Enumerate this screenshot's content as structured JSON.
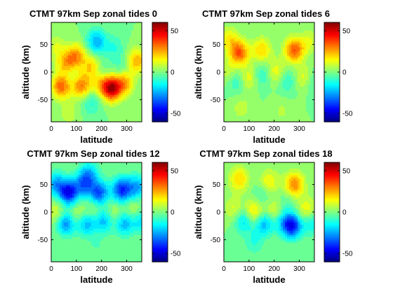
{
  "chart_data": [
    {
      "type": "heatmap",
      "title": "CTMT 97km Sep zonal tides 0",
      "xlabel": "latitude",
      "ylabel": "altitude (km)",
      "xlim": [
        0,
        360
      ],
      "ylim": [
        -90,
        90
      ],
      "xticks": [
        0,
        100,
        200,
        300
      ],
      "yticks": [
        50,
        0,
        -50
      ],
      "colorbar": {
        "min": -60,
        "max": 60,
        "ticks": [
          50,
          0,
          -50
        ]
      },
      "grid": false,
      "features": [
        {
          "x": 100,
          "y": 30,
          "value": 25
        },
        {
          "x": 180,
          "y": 55,
          "value": -25
        },
        {
          "x": 60,
          "y": 15,
          "value": 25
        },
        {
          "x": 160,
          "y": 10,
          "value": 20
        },
        {
          "x": 340,
          "y": 20,
          "value": 25
        },
        {
          "x": 240,
          "y": -30,
          "value": 50
        },
        {
          "x": 40,
          "y": -25,
          "value": 35
        },
        {
          "x": 120,
          "y": -25,
          "value": 30
        },
        {
          "x": 290,
          "y": -20,
          "value": 25
        },
        {
          "x": 200,
          "y": -20,
          "value": 20
        },
        {
          "x": 20,
          "y": 45,
          "value": 10
        },
        {
          "x": 250,
          "y": 45,
          "value": -10
        },
        {
          "x": 160,
          "y": -55,
          "value": -12
        },
        {
          "x": 70,
          "y": -5,
          "value": -8
        },
        {
          "x": 280,
          "y": 10,
          "value": -8
        },
        {
          "x": 200,
          "y": 0,
          "value": -10
        },
        {
          "x": 70,
          "y": -75,
          "value": 8
        }
      ]
    },
    {
      "type": "heatmap",
      "title": "CTMT 97km Sep zonal tides 6",
      "xlabel": "latitude",
      "ylabel": "altitude (km)",
      "xlim": [
        0,
        360
      ],
      "ylim": [
        -90,
        90
      ],
      "xticks": [
        0,
        100,
        200,
        300
      ],
      "yticks": [
        50,
        0,
        -50
      ],
      "colorbar": {
        "min": -60,
        "max": 60,
        "ticks": [
          50,
          0,
          -50
        ]
      },
      "grid": false,
      "features": [
        {
          "x": 60,
          "y": 35,
          "value": 35
        },
        {
          "x": 280,
          "y": 40,
          "value": 35
        },
        {
          "x": 150,
          "y": 40,
          "value": 20
        },
        {
          "x": 340,
          "y": 55,
          "value": 10
        },
        {
          "x": 20,
          "y": 60,
          "value": 15
        },
        {
          "x": 100,
          "y": -10,
          "value": 15
        },
        {
          "x": 210,
          "y": 0,
          "value": 15
        },
        {
          "x": 320,
          "y": -10,
          "value": 15
        },
        {
          "x": 20,
          "y": 0,
          "value": 10
        },
        {
          "x": 50,
          "y": -15,
          "value": -12
        },
        {
          "x": 150,
          "y": -5,
          "value": -12
        },
        {
          "x": 250,
          "y": -15,
          "value": -12
        },
        {
          "x": 350,
          "y": -15,
          "value": -10
        },
        {
          "x": 70,
          "y": -65,
          "value": 8
        },
        {
          "x": 230,
          "y": -70,
          "value": 6
        }
      ]
    },
    {
      "type": "heatmap",
      "title": "CTMT 97km Sep zonal tides 12",
      "xlabel": "latitude",
      "ylabel": "altitude (km)",
      "xlim": [
        0,
        360
      ],
      "ylim": [
        -90,
        90
      ],
      "xticks": [
        0,
        100,
        200,
        300
      ],
      "yticks": [
        50,
        0,
        -50
      ],
      "colorbar": {
        "min": -60,
        "max": 60,
        "ticks": [
          50,
          0,
          -50
        ]
      },
      "grid": false,
      "features": [
        {
          "x": 70,
          "y": 35,
          "value": -45
        },
        {
          "x": 190,
          "y": 35,
          "value": -35
        },
        {
          "x": 280,
          "y": 40,
          "value": -40
        },
        {
          "x": 130,
          "y": 50,
          "value": -28
        },
        {
          "x": 20,
          "y": 50,
          "value": -25
        },
        {
          "x": 340,
          "y": 45,
          "value": -25
        },
        {
          "x": 150,
          "y": 70,
          "value": -20
        },
        {
          "x": 20,
          "y": 0,
          "value": 12
        },
        {
          "x": 100,
          "y": -5,
          "value": 12
        },
        {
          "x": 170,
          "y": 0,
          "value": 10
        },
        {
          "x": 250,
          "y": -5,
          "value": 12
        },
        {
          "x": 330,
          "y": 0,
          "value": 12
        },
        {
          "x": 60,
          "y": -20,
          "value": -30
        },
        {
          "x": 140,
          "y": -20,
          "value": -25
        },
        {
          "x": 210,
          "y": -15,
          "value": -25
        },
        {
          "x": 290,
          "y": -20,
          "value": -25
        },
        {
          "x": 355,
          "y": -15,
          "value": -20
        },
        {
          "x": 180,
          "y": -60,
          "value": -5
        }
      ]
    },
    {
      "type": "heatmap",
      "title": "CTMT 97km Sep zonal tides 18",
      "xlabel": "latitude",
      "ylabel": "altitude (km)",
      "xlim": [
        0,
        360
      ],
      "ylim": [
        -90,
        90
      ],
      "xticks": [
        0,
        100,
        200,
        300
      ],
      "yticks": [
        50,
        0,
        -50
      ],
      "colorbar": {
        "min": -60,
        "max": 60,
        "ticks": [
          50,
          0,
          -50
        ]
      },
      "grid": false,
      "features": [
        {
          "x": 280,
          "y": 50,
          "value": 30
        },
        {
          "x": 60,
          "y": 60,
          "value": 20
        },
        {
          "x": 180,
          "y": 55,
          "value": 15
        },
        {
          "x": 120,
          "y": 0,
          "value": 22
        },
        {
          "x": 200,
          "y": 0,
          "value": 15
        },
        {
          "x": 40,
          "y": 5,
          "value": 12
        },
        {
          "x": 330,
          "y": 5,
          "value": 15
        },
        {
          "x": 270,
          "y": -25,
          "value": -45
        },
        {
          "x": 160,
          "y": -20,
          "value": -25
        },
        {
          "x": 80,
          "y": -15,
          "value": -20
        },
        {
          "x": 230,
          "y": -15,
          "value": -15
        },
        {
          "x": 350,
          "y": -20,
          "value": -15
        },
        {
          "x": 150,
          "y": 30,
          "value": -8
        },
        {
          "x": 120,
          "y": -55,
          "value": -10
        },
        {
          "x": 250,
          "y": 20,
          "value": -6
        }
      ]
    }
  ]
}
